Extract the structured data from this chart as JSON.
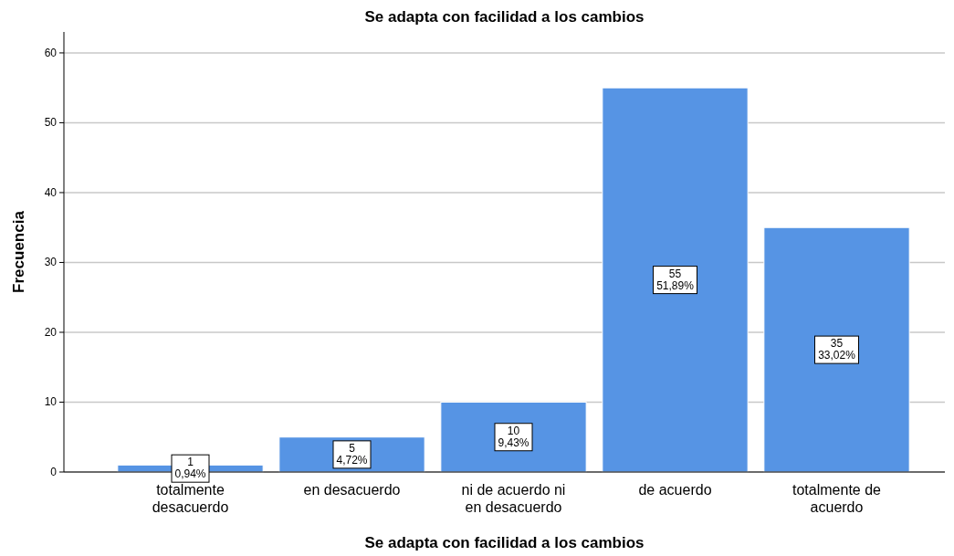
{
  "chart_data": {
    "type": "bar",
    "title": "Se adapta con facilidad a los cambios",
    "xlabel": "Se adapta con facilidad a los cambios",
    "ylabel": "Frecuencia",
    "categories": [
      "totalmente desacuerdo",
      "en desacuerdo",
      "ni de acuerdo ni en desacuerdo",
      "de acuerdo",
      "totalmente de acuerdo"
    ],
    "values": [
      1,
      5,
      10,
      55,
      35
    ],
    "value_labels": [
      "1\n0,94%",
      "5\n4,72%",
      "10\n9,43%",
      "55\n51,89%",
      "35\n33,02%"
    ],
    "color": "#5694e4",
    "ylim": [
      0,
      63
    ],
    "yticks": [
      0,
      10,
      20,
      30,
      40,
      50,
      60
    ],
    "grid": "y"
  }
}
